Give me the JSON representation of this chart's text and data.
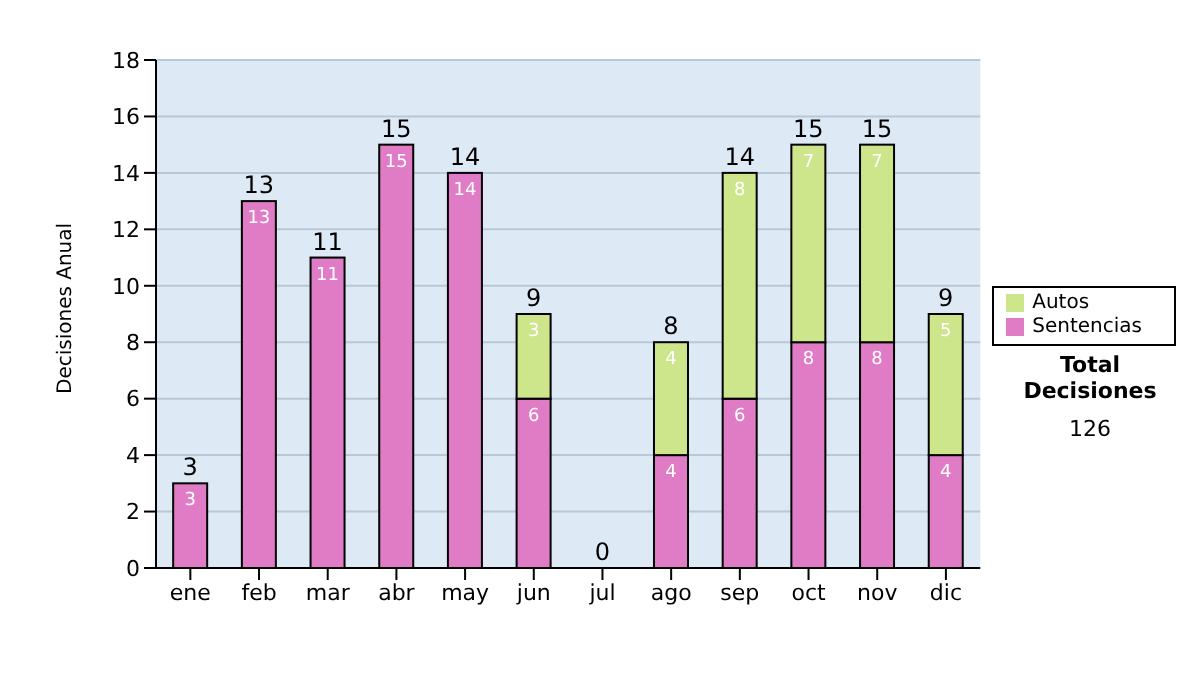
{
  "chart_data": {
    "type": "bar",
    "stacked": true,
    "ylabel": "Decisiones Anual",
    "categories": [
      "ene",
      "feb",
      "mar",
      "abr",
      "may",
      "jun",
      "jul",
      "ago",
      "sep",
      "oct",
      "nov",
      "dic"
    ],
    "series": [
      {
        "name": "Sentencias",
        "color": "#e07cc6",
        "values": [
          3,
          13,
          11,
          15,
          14,
          6,
          0,
          4,
          6,
          8,
          8,
          4
        ],
        "value_labels": [
          "3",
          "13",
          "11",
          "15",
          "14",
          "6",
          null,
          "4",
          "6",
          "8",
          "8",
          "4"
        ]
      },
      {
        "name": "Autos",
        "color": "#cde68c",
        "values": [
          0,
          0,
          0,
          0,
          0,
          3,
          0,
          4,
          8,
          7,
          7,
          5
        ],
        "value_labels": [
          null,
          null,
          null,
          null,
          null,
          "3",
          null,
          "4",
          "8",
          "7",
          "7",
          "5"
        ]
      }
    ],
    "totals": [
      "3",
      "13",
      "11",
      "15",
      "14",
      "9",
      "0",
      "8",
      "14",
      "15",
      "15",
      "9"
    ],
    "ylim": [
      0,
      18
    ],
    "yticks": [
      0,
      2,
      4,
      6,
      8,
      10,
      12,
      14,
      16,
      18
    ],
    "grid": "y",
    "legend": "right",
    "annotations": [
      "Total Decisiones",
      "126"
    ]
  }
}
